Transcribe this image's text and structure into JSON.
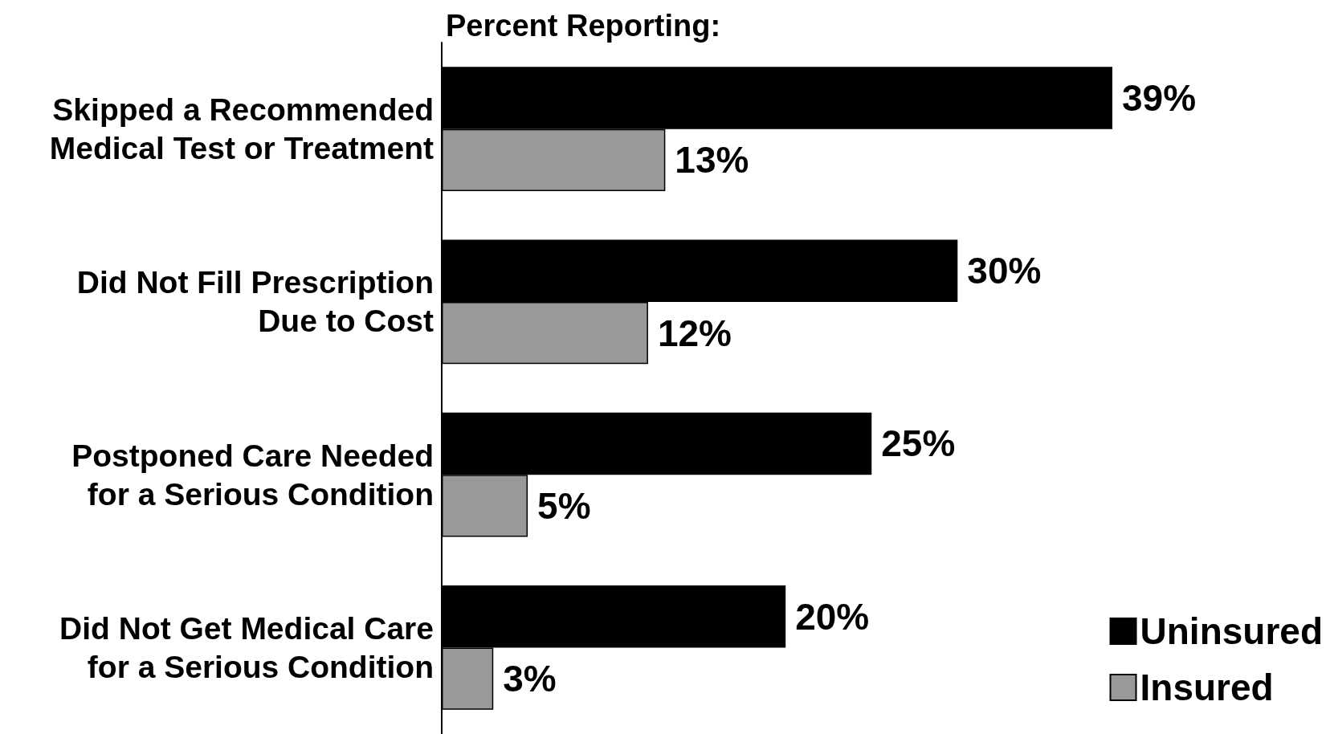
{
  "chart_data": {
    "type": "bar",
    "orientation": "horizontal",
    "title": "Percent Reporting:",
    "categories": [
      "Skipped a Recommended\nMedical Test or Treatment",
      "Did Not Fill Prescription\nDue to Cost",
      "Postponed Care Needed\nfor a Serious Condition",
      "Did Not Get Medical Care\nfor a Serious Condition"
    ],
    "series": [
      {
        "name": "Uninsured",
        "color": "#000000",
        "values": [
          39,
          30,
          25,
          20
        ],
        "value_labels": [
          "39%",
          "30%",
          "25%",
          "20%"
        ]
      },
      {
        "name": "Insured",
        "color": "#999999",
        "values": [
          13,
          12,
          5,
          3
        ],
        "value_labels": [
          "13%",
          "12%",
          "5%",
          "3%"
        ]
      }
    ],
    "legend": "bottom right",
    "tick_labels": "y"
  }
}
